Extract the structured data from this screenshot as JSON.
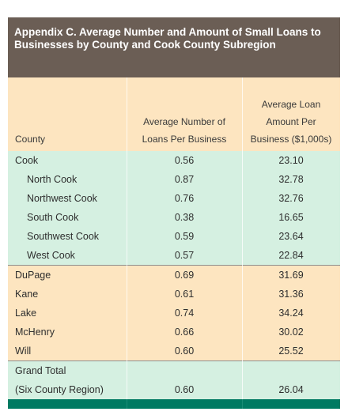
{
  "title": "Appendix C. Average Number and Amount of Small Loans to Businesses by County and Cook County Subregion",
  "columns": {
    "county": "County",
    "num": [
      "Average Number of",
      "Loans Per Business"
    ],
    "amt": [
      "Average Loan",
      "Amount Per",
      "Business ($1,000s)"
    ]
  },
  "rows": [
    {
      "county": "Cook",
      "num": "0.56",
      "amt": "23.10"
    },
    {
      "county": "North Cook",
      "num": "0.87",
      "amt": "32.78"
    },
    {
      "county": "Northwest Cook",
      "num": "0.76",
      "amt": "32.76"
    },
    {
      "county": "South Cook",
      "num": "0.38",
      "amt": "16.65"
    },
    {
      "county": "Southwest Cook",
      "num": "0.59",
      "amt": "23.64"
    },
    {
      "county": "West Cook",
      "num": "0.57",
      "amt": "22.84"
    },
    {
      "county": "DuPage",
      "num": "0.69",
      "amt": "31.69"
    },
    {
      "county": "Kane",
      "num": "0.61",
      "amt": "31.36"
    },
    {
      "county": "Lake",
      "num": "0.74",
      "amt": "34.24"
    },
    {
      "county": "McHenry",
      "num": "0.66",
      "amt": "30.02"
    },
    {
      "county": "Will",
      "num": "0.60",
      "amt": "25.52"
    }
  ],
  "total": {
    "label1": "Grand Total",
    "label2": "(Six County Region)",
    "num": "0.60",
    "amt": "26.04"
  },
  "colors": {
    "title_bg": "#6b5e55",
    "header_bg": "#fde5c0",
    "green_row": "#d5f0e1",
    "peach_row": "#fde5c0",
    "footer_bg": "#007a62"
  }
}
